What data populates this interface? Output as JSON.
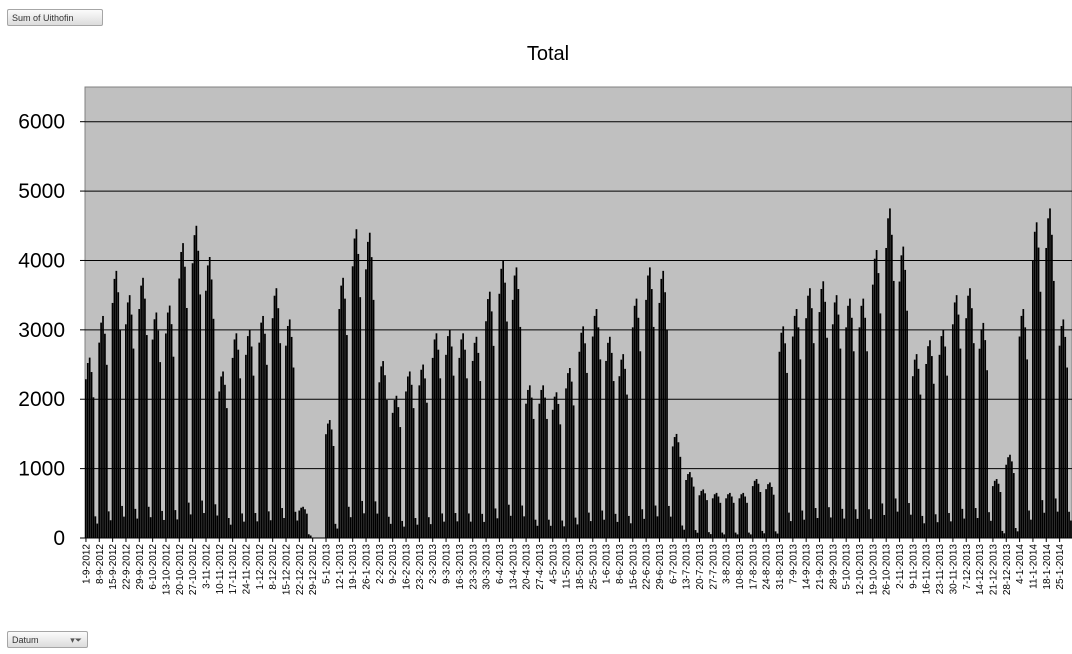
{
  "pivot": {
    "value_field": "Sum of Uithofin",
    "axis_field": "Datum"
  },
  "icons": {
    "filter": "filter-funnel-icon"
  },
  "colors": {
    "plot_bg": "#c0c0c0",
    "bar": "#000000",
    "grid": "#000000"
  },
  "chart_data": {
    "type": "bar",
    "title": "Total",
    "ylim": [
      0,
      6500
    ],
    "yticks": [
      0,
      1000,
      2000,
      3000,
      4000,
      5000,
      6000
    ],
    "grid": true,
    "legend": "none",
    "categories": [
      "1-9-2012",
      "8-9-2012",
      "15-9-2012",
      "22-9-2012",
      "29-9-2012",
      "6-10-2012",
      "13-10-2012",
      "20-10-2012",
      "27-10-2012",
      "3-11-2012",
      "10-11-2012",
      "17-11-2012",
      "24-11-2012",
      "1-12-2012",
      "8-12-2012",
      "15-12-2012",
      "22-12-2012",
      "29-12-2012",
      "5-1-2013",
      "12-1-2013",
      "19-1-2013",
      "26-1-2013",
      "2-2-2013",
      "9-2-2013",
      "16-2-2013",
      "23-2-2013",
      "2-3-2013",
      "9-3-2013",
      "16-3-2013",
      "23-3-2013",
      "30-3-2013",
      "6-4-2013",
      "13-4-2013",
      "20-4-2013",
      "27-4-2013",
      "4-5-2013",
      "11-5-2013",
      "18-5-2013",
      "25-5-2013",
      "1-6-2013",
      "8-6-2013",
      "15-6-2013",
      "22-6-2013",
      "29-6-2013",
      "6-7-2013",
      "13-7-2013",
      "20-7-2013",
      "27-7-2013",
      "3-8-2013",
      "10-8-2013",
      "17-8-2013",
      "24-8-2013",
      "31-8-2013",
      "7-9-2013",
      "14-9-2013",
      "21-9-2013",
      "28-9-2013",
      "5-10-2013",
      "12-10-2013",
      "19-10-2013",
      "26-10-2013",
      "2-11-2013",
      "9-11-2013",
      "16-11-2013",
      "23-11-2013",
      "30-11-2013",
      "7-12-2013",
      "14-12-2013",
      "21-12-2013",
      "28-12-2013",
      "4-1-2014",
      "11-1-2014",
      "18-1-2014",
      "25-1-2014"
    ],
    "weekly_peaks": [
      2600,
      3200,
      3850,
      3500,
      3750,
      3250,
      3350,
      4250,
      4500,
      4050,
      2400,
      2950,
      3000,
      3200,
      3600,
      3150,
      450,
      0,
      1700,
      3750,
      4450,
      4400,
      2550,
      2050,
      2400,
      2500,
      2950,
      3000,
      2950,
      2900,
      3550,
      4000,
      3900,
      2200,
      2200,
      2100,
      2450,
      3050,
      3300,
      2900,
      2650,
      3450,
      3900,
      3850,
      1500,
      950,
      700,
      650,
      650,
      650,
      850,
      800,
      3050,
      3300,
      3600,
      3700,
      3500,
      3450,
      3450,
      4150,
      4750,
      4200,
      2650,
      2850,
      3000,
      3500,
      3600,
      3100,
      850,
      1200,
      3300,
      4550,
      4750,
      3150
    ],
    "weekday_factors": [
      0.88,
      0.97,
      1.0,
      0.92,
      0.78,
      0.12,
      0.08
    ]
  }
}
